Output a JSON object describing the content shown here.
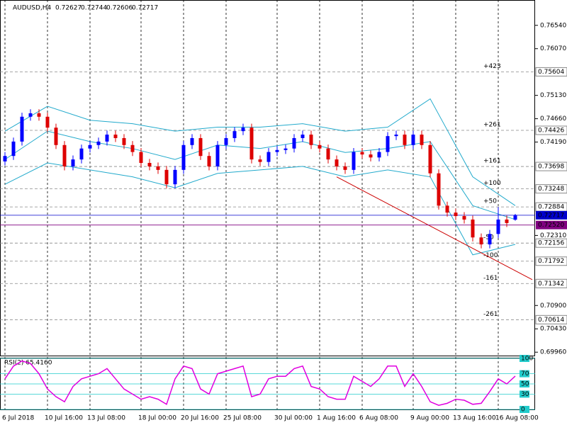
{
  "chart_data": {
    "type": "candlestick",
    "symbol": "AUDUSD,H4",
    "open": [
      0.738,
      0.7391,
      0.742,
      0.747,
      0.7477,
      0.747,
      0.7448,
      0.7413,
      0.737,
      0.7384,
      0.7406,
      0.7413,
      0.742,
      0.7434,
      0.7427,
      0.7413,
      0.7399,
      0.7377,
      0.737,
      0.7363,
      0.7334,
      0.7363,
      0.7413,
      0.7427,
      0.7391,
      0.737,
      0.7413,
      0.7427,
      0.7441,
      0.7448,
      0.7384,
      0.7379,
      0.7399,
      0.7403,
      0.7406,
      0.7427,
      0.7434,
      0.7413,
      0.7406,
      0.7384,
      0.737,
      0.7363,
      0.7399,
      0.7394,
      0.7388,
      0.7399,
      0.7431,
      0.7434,
      0.7413,
      0.7434,
      0.7413,
      0.7356,
      0.7291,
      0.7277,
      0.727,
      0.7263,
      0.7227,
      0.7213,
      0.7234,
      0.7263,
      0.72627
    ],
    "high": [
      0.7399,
      0.7428,
      0.7478,
      0.7485,
      0.7485,
      0.7478,
      0.7456,
      0.7421,
      0.7392,
      0.7414,
      0.7421,
      0.7428,
      0.7442,
      0.7442,
      0.7435,
      0.7421,
      0.7407,
      0.7385,
      0.7378,
      0.7371,
      0.7371,
      0.7421,
      0.7435,
      0.7435,
      0.7399,
      0.7421,
      0.7435,
      0.7449,
      0.7456,
      0.7456,
      0.7392,
      0.7407,
      0.7411,
      0.7414,
      0.7435,
      0.7442,
      0.7442,
      0.7421,
      0.7414,
      0.7392,
      0.7378,
      0.7407,
      0.7407,
      0.7402,
      0.7407,
      0.7439,
      0.7442,
      0.7442,
      0.7442,
      0.7442,
      0.7421,
      0.7364,
      0.7299,
      0.7285,
      0.7278,
      0.7271,
      0.7235,
      0.7242,
      0.7288,
      0.7271,
      0.72744
    ],
    "low": [
      0.7372,
      0.7383,
      0.7412,
      0.7462,
      0.7462,
      0.744,
      0.7405,
      0.7362,
      0.7362,
      0.7376,
      0.7398,
      0.7405,
      0.7412,
      0.7419,
      0.7405,
      0.7391,
      0.7369,
      0.7362,
      0.7355,
      0.7326,
      0.7326,
      0.7355,
      0.7405,
      0.7383,
      0.7362,
      0.7362,
      0.7405,
      0.7419,
      0.7433,
      0.7376,
      0.7371,
      0.7371,
      0.7391,
      0.7395,
      0.7398,
      0.7419,
      0.7405,
      0.7398,
      0.7376,
      0.7362,
      0.7355,
      0.7355,
      0.7386,
      0.738,
      0.738,
      0.7391,
      0.7423,
      0.7405,
      0.7405,
      0.7405,
      0.7348,
      0.7283,
      0.7269,
      0.7262,
      0.7255,
      0.7219,
      0.7205,
      0.7205,
      0.7226,
      0.7248,
      0.72606
    ],
    "close": [
      0.7391,
      0.742,
      0.747,
      0.7477,
      0.747,
      0.7448,
      0.7413,
      0.737,
      0.7384,
      0.7406,
      0.7413,
      0.742,
      0.7434,
      0.7427,
      0.7413,
      0.7399,
      0.7377,
      0.737,
      0.7363,
      0.7334,
      0.7363,
      0.7413,
      0.7427,
      0.7391,
      0.737,
      0.7413,
      0.7427,
      0.7441,
      0.7448,
      0.7384,
      0.7379,
      0.7399,
      0.7403,
      0.7406,
      0.7427,
      0.7434,
      0.7413,
      0.7406,
      0.7384,
      0.737,
      0.7363,
      0.7399,
      0.7394,
      0.7388,
      0.7399,
      0.7431,
      0.7434,
      0.7413,
      0.7434,
      0.7413,
      0.7356,
      0.7291,
      0.7277,
      0.727,
      0.7263,
      0.7227,
      0.7213,
      0.7234,
      0.7263,
      0.7256,
      0.72717
    ],
    "colors": {
      "up": "#0000ff",
      "down": "#dd0000",
      "band": "#22aacc",
      "rsi": "#e000e0",
      "level": "#888888",
      "trend": "#cc0000"
    },
    "ylim": [
      0.6992,
      0.7705
    ],
    "yticks": [
      {
        "value": 0.7654,
        "label": "0.76540"
      },
      {
        "value": 0.7607,
        "label": "0.76070"
      },
      {
        "value": 0.7513,
        "label": "0.75130"
      },
      {
        "value": 0.7466,
        "label": "0.74660"
      },
      {
        "value": 0.7419,
        "label": "0.74190"
      },
      {
        "value": 0.7231,
        "label": "0.72310"
      },
      {
        "value": 0.709,
        "label": "0.70900"
      },
      {
        "value": 0.7043,
        "label": "0.70430"
      },
      {
        "value": 0.6996,
        "label": "0.69960"
      }
    ],
    "levels": [
      {
        "value": 0.75604,
        "label": "0.75604",
        "fib": "+423"
      },
      {
        "value": 0.74426,
        "label": "0.74426",
        "fib": "+261"
      },
      {
        "value": 0.73698,
        "label": "0.73698",
        "fib": "+161"
      },
      {
        "value": 0.73248,
        "label": "0.73248",
        "fib": "+100"
      },
      {
        "value": 0.72884,
        "label": "0.72884",
        "fib": "+50"
      },
      {
        "value": 0.72156,
        "label": "0.72156",
        "fib": "-50"
      },
      {
        "value": 0.71792,
        "label": "0.71792",
        "fib": "-100"
      },
      {
        "value": 0.71342,
        "label": "0.71342",
        "fib": "-161"
      },
      {
        "value": 0.70614,
        "label": "0.70614",
        "fib": "-261"
      }
    ],
    "bid": {
      "value": 0.72717,
      "label": "0.72717",
      "color": "#0000cc"
    },
    "line": {
      "value": 0.7252,
      "label": "0.72520",
      "color": "#800080"
    },
    "bands": {
      "x": [
        0,
        5,
        10,
        15,
        20,
        25,
        30,
        35,
        40,
        45,
        50,
        55,
        60
      ],
      "upper": [
        0.7441,
        0.7491,
        0.7463,
        0.7456,
        0.7441,
        0.7449,
        0.7449,
        0.7456,
        0.7441,
        0.7449,
        0.7506,
        0.7349,
        0.7291
      ],
      "middle": [
        0.7384,
        0.7441,
        0.742,
        0.7406,
        0.7384,
        0.7413,
        0.7406,
        0.742,
        0.7398,
        0.7406,
        0.742,
        0.7291,
        0.7263
      ],
      "lower": [
        0.7334,
        0.7377,
        0.7363,
        0.7349,
        0.7327,
        0.7356,
        0.7363,
        0.737,
        0.7349,
        0.7363,
        0.7349,
        0.7192,
        0.7213
      ]
    },
    "trendline": {
      "x": [
        39,
        62
      ],
      "values": [
        0.7349,
        0.7142
      ]
    },
    "xticks": [
      {
        "value": 0,
        "label": "6 Jul 2018"
      },
      {
        "value": 5,
        "label": "10 Jul 16:00"
      },
      {
        "value": 10,
        "label": "13 Jul 08:00"
      },
      {
        "value": 16,
        "label": "18 Jul 00:00"
      },
      {
        "value": 21,
        "label": "20 Jul 16:00"
      },
      {
        "value": 26,
        "label": "25 Jul 08:00"
      },
      {
        "value": 32,
        "label": "30 Jul 00:00"
      },
      {
        "value": 37,
        "label": "1 Aug 16:00"
      },
      {
        "value": 42,
        "label": "6 Aug 08:00"
      },
      {
        "value": 48,
        "label": "9 Aug 00:00"
      },
      {
        "value": 53,
        "label": "13 Aug 16:00"
      },
      {
        "value": 58,
        "label": "16 Aug 08:00"
      }
    ],
    "rsi": {
      "label": "RSI(2) 65.4160",
      "ylim": [
        0,
        100
      ],
      "yticks": [
        100,
        70,
        50,
        30,
        0
      ],
      "values": [
        60,
        85,
        95,
        90,
        70,
        40,
        25,
        15,
        45,
        60,
        65,
        70,
        80,
        60,
        40,
        30,
        20,
        25,
        20,
        10,
        60,
        85,
        80,
        40,
        30,
        70,
        75,
        80,
        85,
        25,
        30,
        60,
        65,
        65,
        80,
        85,
        45,
        40,
        25,
        20,
        20,
        65,
        55,
        45,
        60,
        85,
        85,
        45,
        70,
        45,
        15,
        8,
        12,
        20,
        18,
        10,
        12,
        35,
        60,
        50,
        65.416
      ]
    }
  }
}
